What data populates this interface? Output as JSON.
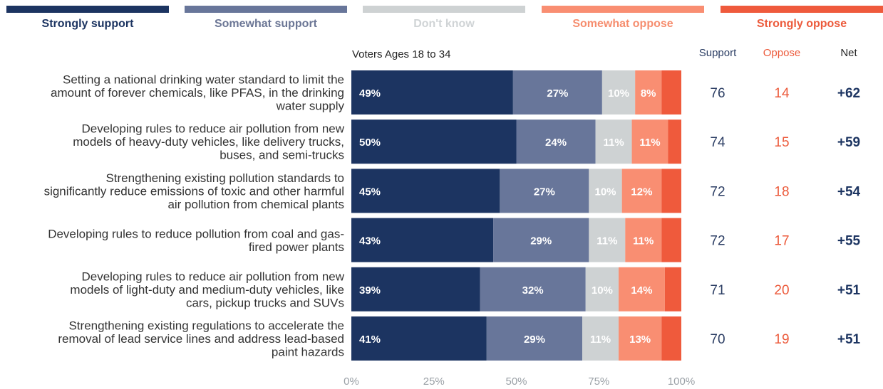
{
  "chart_data": {
    "type": "bar",
    "stacked": true,
    "orientation": "horizontal",
    "subtitle": "Voters Ages 18 to 34",
    "legend": [
      "Strongly support",
      "Somewhat support",
      "Don't know",
      "Somewhat oppose",
      "Strongly oppose"
    ],
    "legend_position": "top",
    "categories": [
      "Setting a national drinking water standard to limit the amount of forever chemicals, like PFAS, in the drinking water supply",
      "Developing rules to reduce air pollution from new models of heavy-duty vehicles, like delivery trucks, buses, and semi-trucks",
      "Strengthening existing pollution standards to significantly reduce emissions of toxic and other harmful air pollution from chemical plants",
      "Developing rules to reduce pollution from coal and gas-fired power plants",
      "Developing rules to reduce air pollution from new models of light-duty and medium-duty vehicles, like cars, pickup trucks and SUVs",
      "Strengthening existing regulations to accelerate the removal of lead service lines and address lead-based paint hazards"
    ],
    "category_lines": [
      [
        "Setting a national drinking water standard to limit the",
        "amount of forever chemicals, like PFAS, in the drinking",
        "water supply"
      ],
      [
        "Developing rules to reduce air pollution from new",
        "models of heavy-duty vehicles, like delivery trucks,",
        "buses, and semi-trucks"
      ],
      [
        "Strengthening existing pollution standards to",
        "significantly reduce emissions of toxic and other harmful",
        "air pollution from chemical plants"
      ],
      [
        "Developing rules to reduce pollution from coal and gas-",
        "fired power plants"
      ],
      [
        "Developing rules to reduce air pollution from new",
        "models of light-duty and medium-duty vehicles, like",
        "cars, pickup trucks and SUVs"
      ],
      [
        "Strengthening existing regulations to accelerate the",
        "removal of lead service lines and address lead-based",
        "paint hazards"
      ]
    ],
    "series": [
      {
        "name": "Strongly support",
        "color": "#1c3461",
        "values": [
          49,
          50,
          45,
          43,
          39,
          41
        ],
        "labels": [
          "49%",
          "50%",
          "45%",
          "43%",
          "39%",
          "41%"
        ]
      },
      {
        "name": "Somewhat support",
        "color": "#68769a",
        "values": [
          27,
          24,
          27,
          29,
          32,
          29
        ],
        "labels": [
          "27%",
          "24%",
          "27%",
          "29%",
          "32%",
          "29%"
        ]
      },
      {
        "name": "Don't know",
        "color": "#ced2d3",
        "values": [
          10,
          11,
          10,
          11,
          10,
          11
        ],
        "labels": [
          "10%",
          "11%",
          "10%",
          "11%",
          "10%",
          "11%"
        ]
      },
      {
        "name": "Somewhat oppose",
        "color": "#f98e72",
        "values": [
          8,
          11,
          12,
          11,
          14,
          13
        ],
        "labels": [
          "8%",
          "11%",
          "12%",
          "11%",
          "14%",
          "13%"
        ]
      },
      {
        "name": "Strongly oppose",
        "color": "#ef5a3c",
        "values": [
          6,
          4,
          6,
          6,
          5,
          6
        ],
        "labels": [
          "",
          "",
          "",
          "",
          "",
          ""
        ]
      }
    ],
    "xlim": [
      0,
      100
    ],
    "x_ticks": [
      "0%",
      "25%",
      "50%",
      "75%",
      "100%"
    ],
    "side_columns": {
      "headers": {
        "support": "Support",
        "oppose": "Oppose",
        "net": "Net"
      },
      "support": [
        "76",
        "74",
        "72",
        "72",
        "71",
        "70"
      ],
      "oppose": [
        "14",
        "15",
        "18",
        "17",
        "20",
        "19"
      ],
      "net": [
        "+62",
        "+59",
        "+54",
        "+55",
        "+51",
        "+51"
      ]
    },
    "colors": {
      "navy": "#1c3461",
      "support_text": "#2c3e64",
      "oppose_text": "#ec5a3b",
      "dontknow_text": "#d0d4d6",
      "somewhat_oppose_text": "#f68d6e",
      "somewhat_support_text": "#6b7695",
      "axis_text": "#9aa0a6",
      "label_text": "#333333"
    }
  }
}
